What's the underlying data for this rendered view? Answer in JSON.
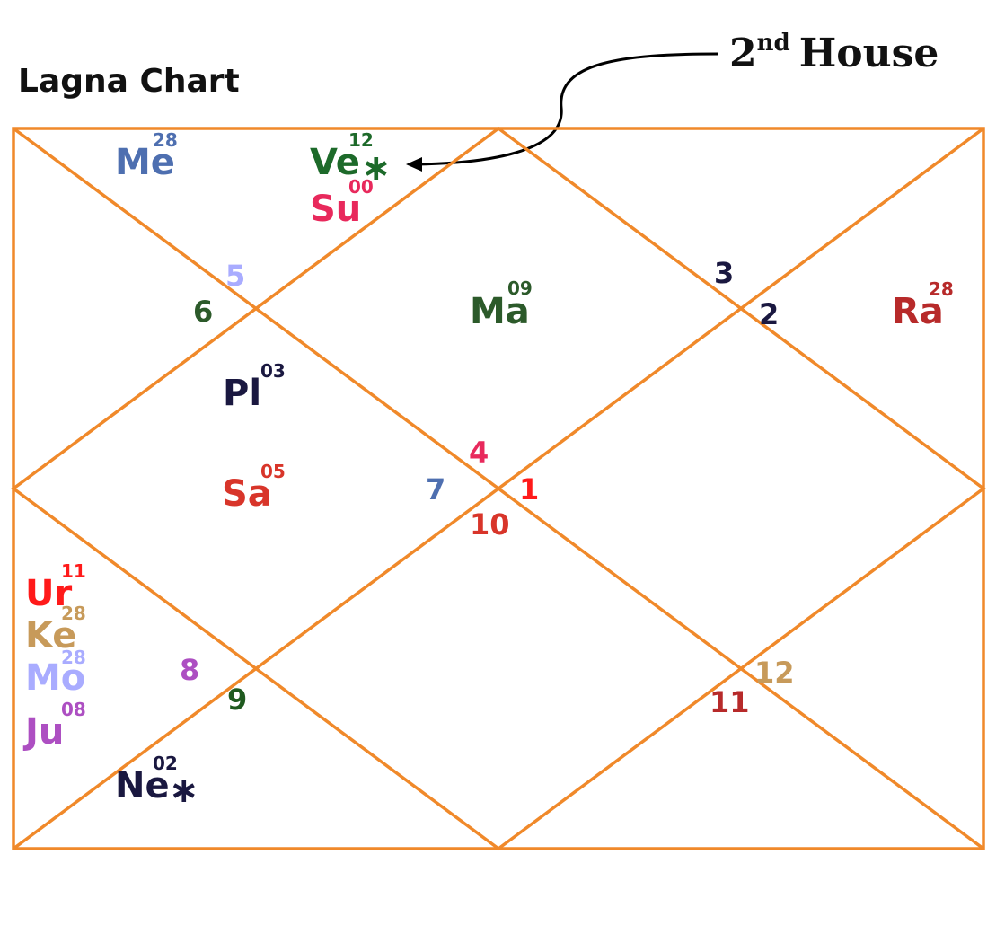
{
  "title": "Lagna Chart",
  "annotation": {
    "label": "2",
    "superscript": "nd",
    "suffix": "House"
  },
  "colors": {
    "frame": "#f0892a",
    "arrow": "#000000"
  },
  "houses": [
    {
      "n": "1",
      "color": "#ff1a1a"
    },
    {
      "n": "2",
      "color": "#1a1840"
    },
    {
      "n": "3",
      "color": "#1a1840"
    },
    {
      "n": "4",
      "color": "#e8295c"
    },
    {
      "n": "5",
      "color": "#a9acff"
    },
    {
      "n": "6",
      "color": "#2c5a2a"
    },
    {
      "n": "7",
      "color": "#4e6fb0"
    },
    {
      "n": "8",
      "color": "#ad4fc2"
    },
    {
      "n": "9",
      "color": "#1f5a1f"
    },
    {
      "n": "10",
      "color": "#d8352a"
    },
    {
      "n": "11",
      "color": "#b72a2a"
    },
    {
      "n": "12",
      "color": "#c79a5a"
    }
  ],
  "planets": [
    {
      "abbr": "Me",
      "deg": "28",
      "suffix": "",
      "color": "#4e6fb0"
    },
    {
      "abbr": "Ve",
      "deg": "12",
      "suffix": "∗",
      "color": "#1d6a2a"
    },
    {
      "abbr": "Su",
      "deg": "00",
      "suffix": "",
      "color": "#e8295c"
    },
    {
      "abbr": "Ma",
      "deg": "09",
      "suffix": "",
      "color": "#2c5a2a"
    },
    {
      "abbr": "Ra",
      "deg": "28",
      "suffix": "",
      "color": "#b72a2a"
    },
    {
      "abbr": "Pl",
      "deg": "03",
      "suffix": "",
      "color": "#1a1840"
    },
    {
      "abbr": "Sa",
      "deg": "05",
      "suffix": "",
      "color": "#d8352a"
    },
    {
      "abbr": "Ur",
      "deg": "11",
      "suffix": "",
      "color": "#ff1a1a"
    },
    {
      "abbr": "Ke",
      "deg": "28",
      "suffix": "",
      "color": "#c79a5a"
    },
    {
      "abbr": "Mo",
      "deg": "28",
      "suffix": "",
      "color": "#a9acff"
    },
    {
      "abbr": "Ju",
      "deg": "08",
      "suffix": "",
      "color": "#ad4fc2"
    },
    {
      "abbr": "Ne",
      "deg": "02",
      "suffix": "∗",
      "color": "#1a1840"
    }
  ]
}
